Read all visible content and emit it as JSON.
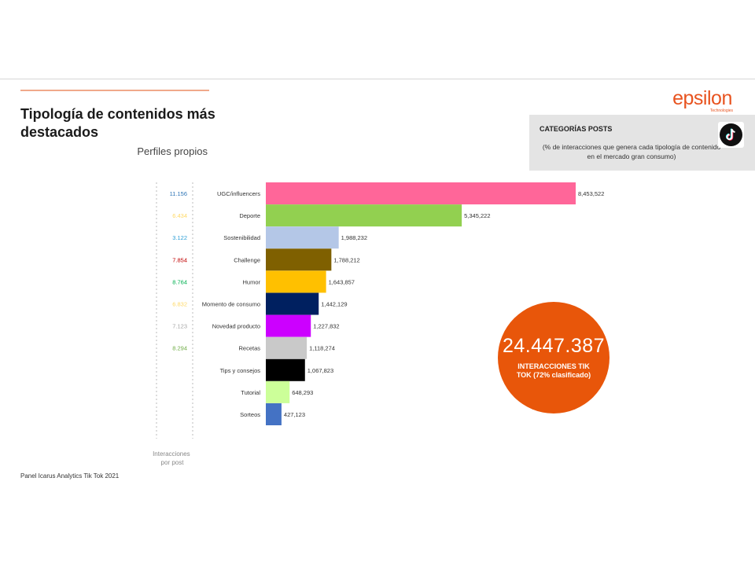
{
  "header": {
    "title": "Tipología de contenidos más destacados",
    "subtitle": "Perfiles propios"
  },
  "logo": {
    "word": "epsilon",
    "sub": "Technologies"
  },
  "category_box": {
    "title": "CATEGORÍAS POSTS",
    "description": "(% de interacciones que genera cada tipología de contenido en el mercado gran consumo)",
    "icon": "tiktok-icon"
  },
  "summary": {
    "total": "24.447.387",
    "label": "INTERACCIONES TIK TOK (72% clasificado)",
    "color": "#e8560a"
  },
  "footer": {
    "source": "Panel Icarus Analytics Tik Tok 2021"
  },
  "chart_data": {
    "type": "bar",
    "orientation": "horizontal",
    "categories": [
      "UGC/influencers",
      "Deporte",
      "Sostenibilidad",
      "Challenge",
      "Humor",
      "Momento de consumo",
      "Novedad producto",
      "Recetas",
      "Tips y consejos",
      "Tutorial",
      "Sorteos"
    ],
    "values": [
      8453522,
      5345222,
      1988232,
      1788212,
      1643857,
      1442129,
      1227832,
      1118274,
      1067823,
      648293,
      427123
    ],
    "value_labels": [
      "8,453,522",
      "5,345,222",
      "1,988,232",
      "1,788,212",
      "1,643,857",
      "1,442,129",
      "1,227,832",
      "1,118,274",
      "1,067,823",
      "648,293",
      "427,123"
    ],
    "colors": [
      "#ff6699",
      "#92d050",
      "#b4c7e7",
      "#7f6000",
      "#ffc000",
      "#002060",
      "#cc00ff",
      "#c9c9c9",
      "#000000",
      "#ccff99",
      "#4472c4"
    ],
    "xlim": [
      0,
      9000000
    ],
    "interactions_per_post": {
      "label": "Interacciones por post",
      "values": [
        "11.156",
        "6.434",
        "3.122",
        "7.854",
        "8.764",
        "6.832",
        "7.123",
        "8.294"
      ],
      "colors": [
        "#2e75b6",
        "#ffd966",
        "#2e9fd6",
        "#c00000",
        "#00b050",
        "#ffd966",
        "#a6a6a6",
        "#70ad47"
      ]
    }
  }
}
